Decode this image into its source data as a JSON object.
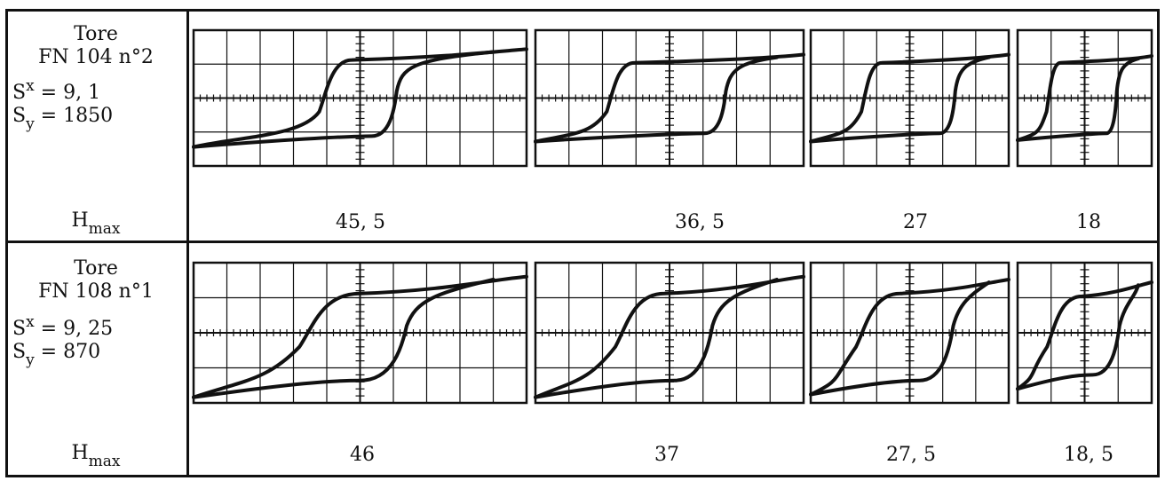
{
  "rows": [
    {
      "label": {
        "line1": "Tore",
        "line2": "FN 104 n°2",
        "sx_prefix": "S",
        "sx_sup": "x",
        "sx_value": " = 9, 1",
        "sy_prefix": "S",
        "sy_sub": "y",
        "sy_value": " = 1850",
        "hmax_prefix": "H",
        "hmax_sub": "max"
      },
      "hmax_values": [
        "45, 5",
        "36, 5",
        "27",
        "18"
      ]
    },
    {
      "label": {
        "line1": "Tore",
        "line2": "FN 108 n°1",
        "sx_prefix": "S",
        "sx_sup": "x",
        "sx_value": " = 9, 25",
        "sy_prefix": "S",
        "sy_sub": "y",
        "sy_value": " = 870",
        "hmax_prefix": "H",
        "hmax_sub": "max"
      },
      "hmax_values": [
        "46",
        "37",
        "27, 5",
        "18, 5"
      ]
    }
  ],
  "colors": {
    "ink": "#111111",
    "paper": "#ffffff"
  }
}
